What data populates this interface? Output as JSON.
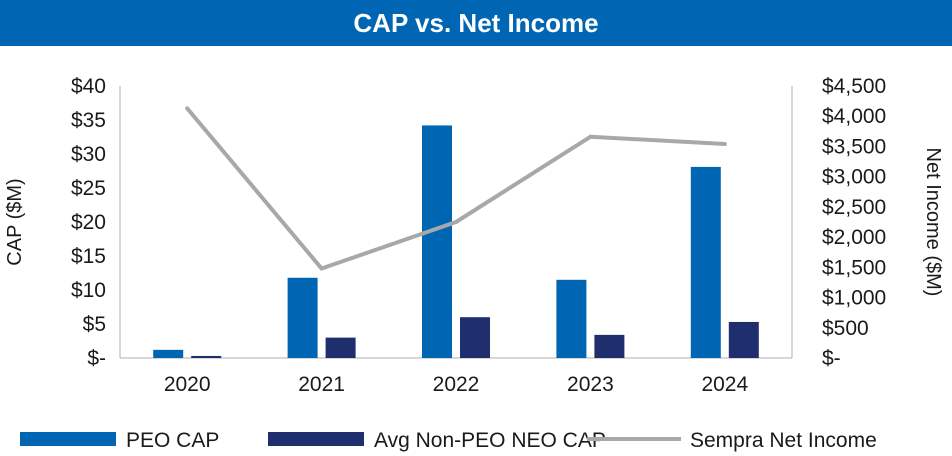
{
  "colors": {
    "banner": "#0066B3",
    "peo": "#0066B3",
    "neo": "#1F2F6E",
    "net_income": "#A6A8AB",
    "axis": "#BFBFBF"
  },
  "chart_data": {
    "type": "bar",
    "title": "CAP vs. Net Income",
    "categories": [
      "2020",
      "2021",
      "2022",
      "2023",
      "2024"
    ],
    "series": [
      {
        "name": "PEO CAP",
        "type": "bar",
        "axis": "left",
        "values": [
          1.2,
          11.8,
          34.2,
          11.5,
          28.1
        ]
      },
      {
        "name": "Avg Non-PEO NEO CAP",
        "type": "bar",
        "axis": "left",
        "values": [
          0.3,
          3.0,
          6.0,
          3.4,
          5.3
        ]
      },
      {
        "name": "Sempra Net Income",
        "type": "line",
        "axis": "right",
        "values": [
          4130,
          1480,
          2250,
          3660,
          3540
        ]
      }
    ],
    "ylabel": "CAP ($M)",
    "y2label": "Net Income ($M)",
    "ylim": [
      0,
      40
    ],
    "y2lim": [
      0,
      4500
    ],
    "yticks": [
      0,
      5,
      10,
      15,
      20,
      25,
      30,
      35,
      40
    ],
    "yticklabels": [
      "$-",
      "$5",
      "$10",
      "$15",
      "$20",
      "$25",
      "$30",
      "$35",
      "$40"
    ],
    "y2ticks": [
      0,
      500,
      1000,
      1500,
      2000,
      2500,
      3000,
      3500,
      4000,
      4500
    ],
    "y2ticklabels": [
      "$-",
      "$500",
      "$1,000",
      "$1,500",
      "$2,000",
      "$2,500",
      "$3,000",
      "$3,500",
      "$4,000",
      "$4,500"
    ],
    "legend": "bottom",
    "grid": false
  }
}
